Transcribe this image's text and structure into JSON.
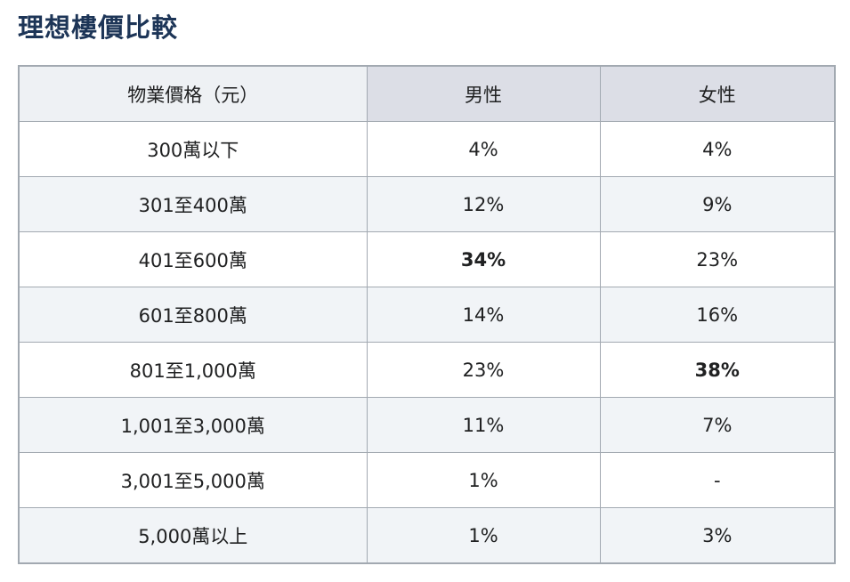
{
  "title": "理想樓價比較",
  "table": {
    "headers": [
      "物業價格（元）",
      "男性",
      "女性"
    ],
    "rows": [
      {
        "price": "300萬以下",
        "male": "4%",
        "female": "4%",
        "male_bold": false,
        "female_bold": false
      },
      {
        "price": "301至400萬",
        "male": "12%",
        "female": "9%",
        "male_bold": false,
        "female_bold": false
      },
      {
        "price": "401至600萬",
        "male": "34%",
        "female": "23%",
        "male_bold": true,
        "female_bold": false
      },
      {
        "price": "601至800萬",
        "male": "14%",
        "female": "16%",
        "male_bold": false,
        "female_bold": false
      },
      {
        "price": "801至1,000萬",
        "male": "23%",
        "female": "38%",
        "male_bold": false,
        "female_bold": true
      },
      {
        "price": "1,001至3,000萬",
        "male": "11%",
        "female": "7%",
        "male_bold": false,
        "female_bold": false
      },
      {
        "price": "3,001至5,000萬",
        "male": "1%",
        "female": "-",
        "male_bold": false,
        "female_bold": false
      },
      {
        "price": "5,000萬以上",
        "male": "1%",
        "female": "3%",
        "male_bold": false,
        "female_bold": false
      }
    ]
  },
  "colors": {
    "title": "#1d3557",
    "border": "#a2a9b1",
    "header_bg": "#dcdee6",
    "stripe_bg": "#f1f4f7"
  }
}
